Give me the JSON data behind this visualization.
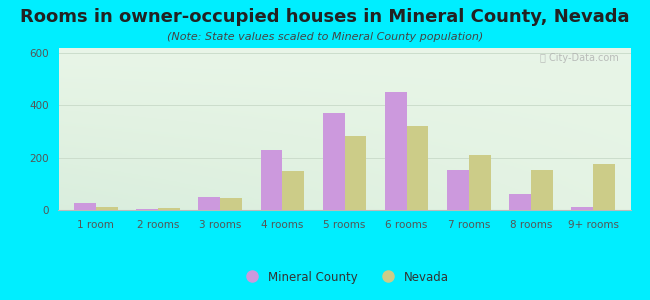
{
  "title": "Rooms in owner-occupied houses in Mineral County, Nevada",
  "subtitle": "(Note: State values scaled to Mineral County population)",
  "categories": [
    "1 room",
    "2 rooms",
    "3 rooms",
    "4 rooms",
    "5 rooms",
    "6 rooms",
    "7 rooms",
    "8 rooms",
    "9+ rooms"
  ],
  "mineral_county": [
    25,
    5,
    50,
    230,
    370,
    450,
    155,
    60,
    12
  ],
  "nevada": [
    10,
    8,
    45,
    148,
    285,
    320,
    210,
    155,
    175
  ],
  "mineral_color": "#cc99dd",
  "nevada_color": "#cccc88",
  "background_color": "#00eeff",
  "ylim": [
    0,
    620
  ],
  "yticks": [
    0,
    200,
    400,
    600
  ],
  "title_fontsize": 13,
  "subtitle_fontsize": 8,
  "tick_fontsize": 7.5,
  "legend_fontsize": 8.5,
  "watermark_text": "ⓘ City-Data.com"
}
